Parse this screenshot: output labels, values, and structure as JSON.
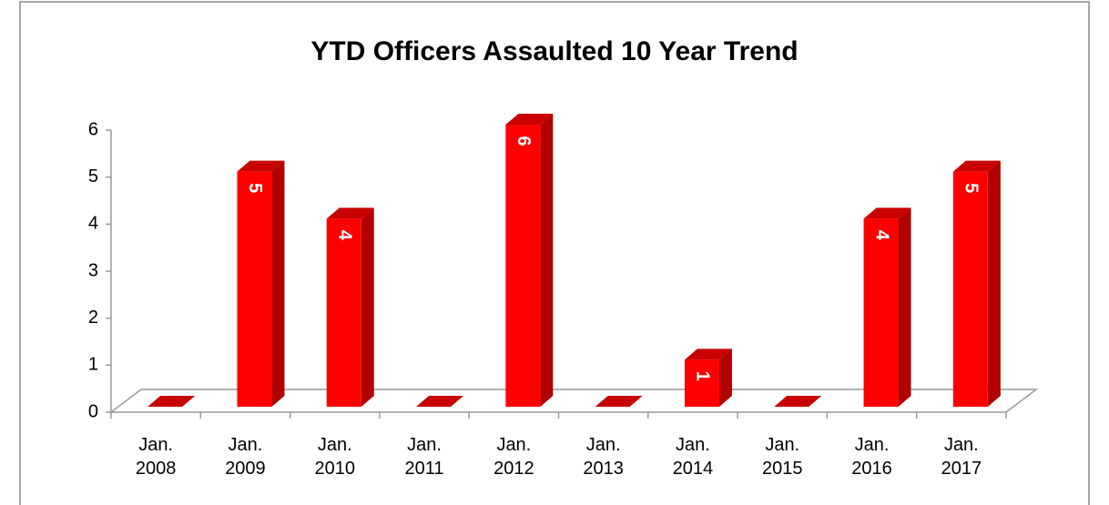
{
  "chart_data": {
    "type": "bar3d",
    "title": "YTD Officers Assaulted 10 Year Trend",
    "categories": [
      "Jan. 2008",
      "Jan. 2009",
      "Jan. 2010",
      "Jan. 2011",
      "Jan. 2012",
      "Jan. 2013",
      "Jan. 2014",
      "Jan. 2015",
      "Jan. 2016",
      "Jan. 2017"
    ],
    "values": [
      0,
      5,
      4,
      0,
      6,
      0,
      1,
      0,
      4,
      5
    ],
    "color": "#ff0000",
    "ylim": [
      0,
      6
    ],
    "yticks": [
      0,
      1,
      2,
      3,
      4,
      5,
      6
    ],
    "grid": false
  }
}
